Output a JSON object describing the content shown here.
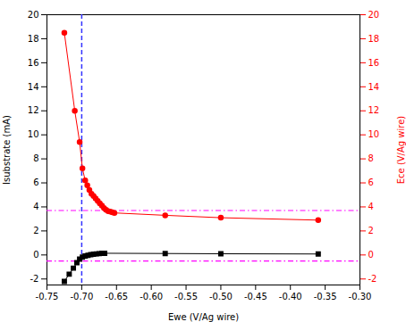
{
  "chart_data": {
    "type": "line",
    "xlabel": "Ewe (V/Ag wire)",
    "ylabel": "Isubstrate (mA)",
    "y2label": "Ece (V/Ag wire)",
    "xlim": [
      -0.75,
      -0.3
    ],
    "ylim": [
      -2.5,
      20
    ],
    "y2lim": [
      -2.5,
      20
    ],
    "xticks": [
      -0.75,
      {
        "value": -0.7,
        "label": "-0.70"
      },
      -0.65,
      {
        "value": -0.6,
        "label": "-0.60"
      },
      -0.55,
      {
        "value": -0.5,
        "label": "-0.50"
      },
      -0.45,
      {
        "value": -0.4,
        "label": "-0.40"
      },
      -0.35,
      {
        "value": -0.3,
        "label": "-0.30"
      }
    ],
    "yticks": [
      -2,
      0,
      2,
      4,
      6,
      8,
      10,
      12,
      14,
      16,
      18,
      20
    ],
    "y2ticks": [
      -2,
      0,
      2,
      4,
      6,
      8,
      10,
      12,
      14,
      16,
      18,
      20
    ],
    "grid": false,
    "series": [
      {
        "x": [
          -0.725,
          -0.718,
          -0.712,
          -0.707,
          -0.703,
          -0.699,
          -0.695,
          -0.691,
          -0.687,
          -0.683,
          -0.679,
          -0.675,
          -0.671,
          -0.667,
          -0.58,
          -0.5,
          -0.36
        ],
        "values": [
          -2.2,
          -1.6,
          -1.1,
          -0.65,
          -0.35,
          -0.18,
          -0.08,
          -0.03,
          0.02,
          0.06,
          0.09,
          0.11,
          0.13,
          0.14,
          0.12,
          0.1,
          0.08
        ],
        "color": "#000000",
        "marker": "square",
        "axis": "y"
      },
      {
        "x": [
          -0.725,
          -0.71,
          -0.703,
          -0.699,
          -0.695,
          -0.692,
          -0.689,
          -0.686,
          -0.683,
          -0.68,
          -0.677,
          -0.674,
          -0.671,
          -0.668,
          -0.665,
          -0.662,
          -0.659,
          -0.656,
          -0.653,
          -0.58,
          -0.5,
          -0.36
        ],
        "values": [
          18.5,
          12.0,
          9.4,
          7.2,
          6.2,
          5.8,
          5.4,
          5.1,
          4.9,
          4.7,
          4.5,
          4.3,
          4.1,
          3.9,
          3.75,
          3.65,
          3.6,
          3.55,
          3.5,
          3.3,
          3.1,
          2.9
        ],
        "color": "#FF0000",
        "marker": "circle",
        "axis": "y2"
      }
    ],
    "reference_lines": [
      {
        "axis": "x",
        "value": -0.7,
        "color": "#3333FF",
        "line_style": "dashed"
      },
      {
        "axis": "y",
        "value": -0.5,
        "color": "#FF00FF",
        "line_style": "dashdot"
      },
      {
        "axis": "y2",
        "value": 3.7,
        "color": "#FF00FF",
        "line_style": "dashdot"
      }
    ],
    "y2color": "#FF0000"
  }
}
